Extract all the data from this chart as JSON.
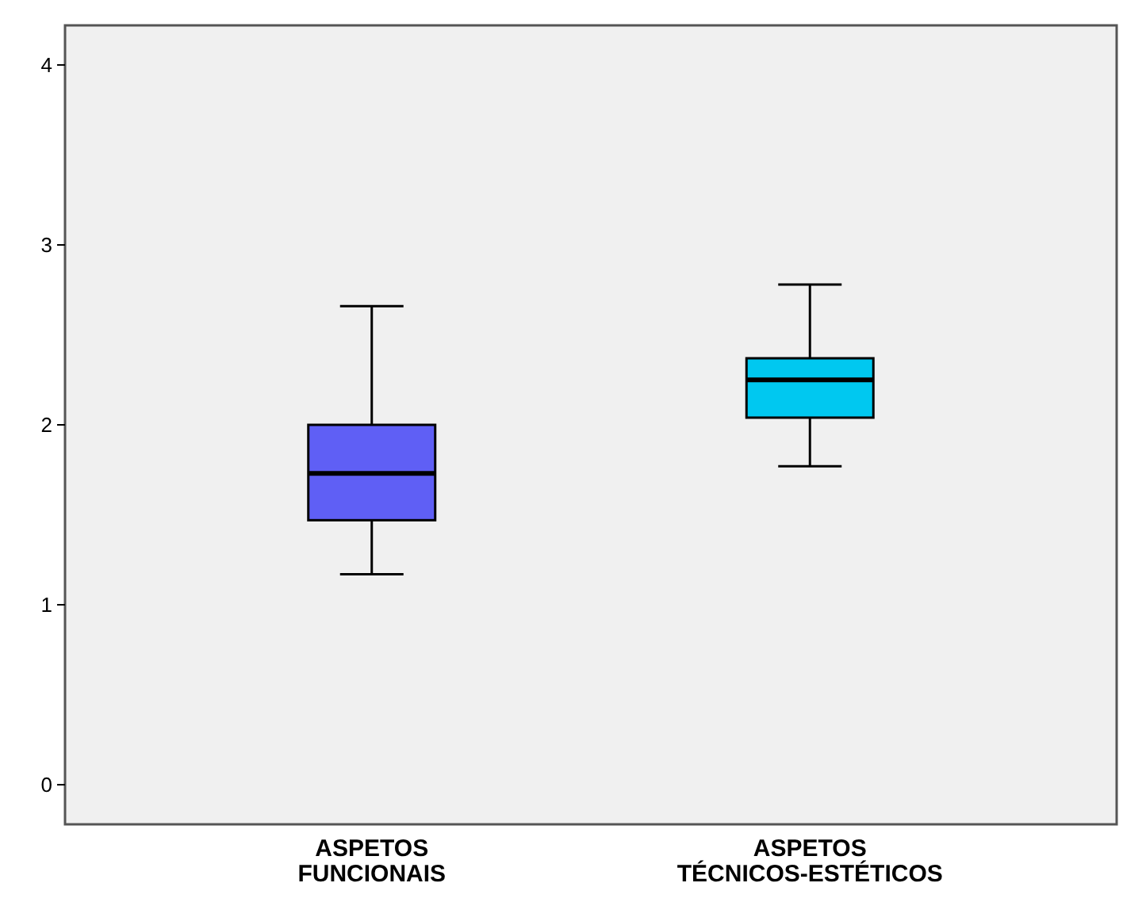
{
  "chart_data": {
    "type": "box",
    "categories": [
      "ASPETOS FUNCIONAIS",
      "ASPETOS TÉCNICOS-ESTÉTICOS"
    ],
    "boxes": [
      {
        "low": 1.17,
        "q1": 1.47,
        "median": 1.73,
        "q3": 2.0,
        "high": 2.66
      },
      {
        "low": 1.77,
        "q1": 2.04,
        "median": 2.25,
        "q3": 2.37,
        "high": 2.78
      }
    ],
    "colors": [
      "#5f5ff5",
      "#00c8f0"
    ],
    "ylim": [
      -0.22,
      4.22
    ],
    "yticks": [
      0,
      1,
      2,
      3,
      4
    ],
    "grid": false
  }
}
